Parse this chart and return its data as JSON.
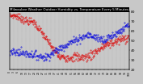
{
  "title": "Milwaukee Weather Outdoor Humidity vs. Temperature Every 5 Minutes",
  "bg_color": "#c8c8c8",
  "plot_bg_color": "#c8c8c8",
  "red_color": "#dd0000",
  "blue_color": "#0000dd",
  "ylim_humidity": [
    0,
    100
  ],
  "ylim_temp": [
    20,
    80
  ],
  "right_yticks": [
    20,
    30,
    40,
    50,
    60,
    70,
    80
  ],
  "n_points": 288,
  "title_bg": "#000000",
  "title_color": "#ffffff",
  "title_fontsize": 3.0,
  "tick_fontsize": 3.2
}
